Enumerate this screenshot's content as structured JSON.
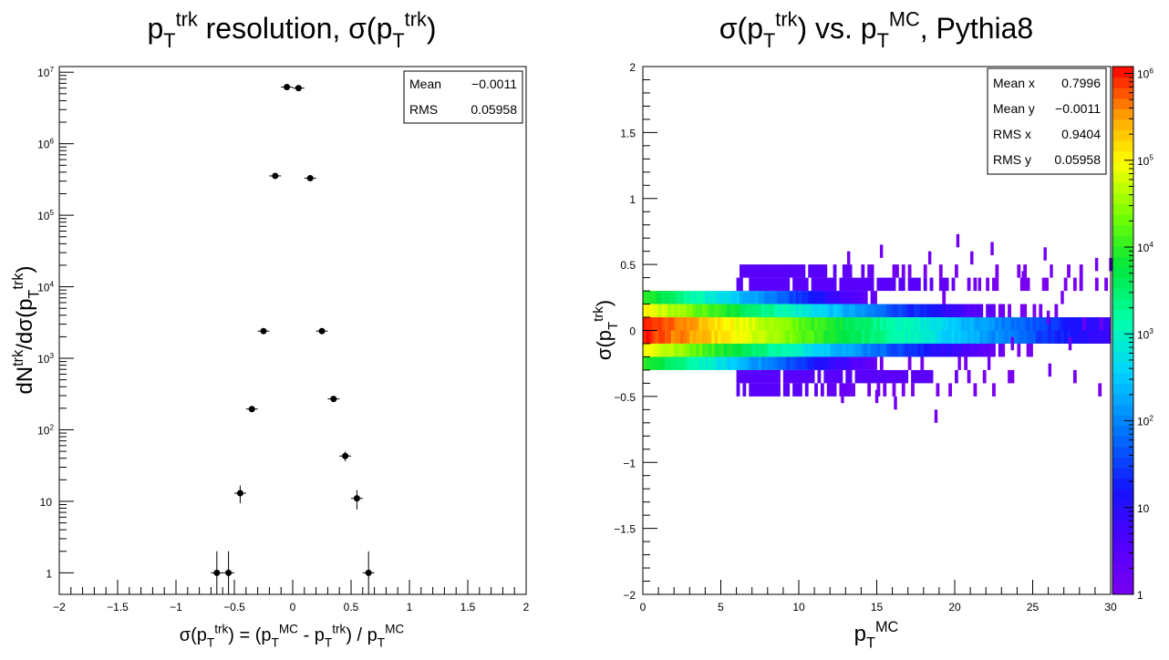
{
  "left": {
    "title": {
      "p": "p",
      "sub": "T",
      "sup": "trk",
      "rest1": " resolution, σ(",
      "p2": "p",
      "sub2": "T",
      "sup2": "trk",
      "rest2": ")"
    },
    "xlabel": "σ(p_T^trk) = (p_T^MC - p_T^trk) / p_T^MC",
    "ylabel": "dN^trk/dσ(p_T^trk)",
    "stats": {
      "mean_label": "Mean",
      "mean_value": "−0.0011",
      "rms_label": "RMS",
      "rms_value": "0.05958"
    }
  },
  "right": {
    "title": "σ(p_T^trk) vs. p_T^MC, Pythia8",
    "xlabel": "p_T^MC",
    "ylabel": "σ(p_T^trk)",
    "stats": [
      {
        "label": "Mean x",
        "value": "0.7996"
      },
      {
        "label": "Mean y",
        "value": "−0.0011"
      },
      {
        "label": "RMS x",
        "value": "0.9404"
      },
      {
        "label": "RMS y",
        "value": "0.05958"
      }
    ]
  },
  "chart_data": [
    {
      "type": "scatter",
      "x": [
        -0.65,
        -0.55,
        -0.45,
        -0.35,
        -0.25,
        -0.15,
        -0.05,
        0.05,
        0.15,
        0.25,
        0.35,
        0.45,
        0.55,
        0.65
      ],
      "y": [
        1,
        1,
        13,
        195,
        2400,
        355000,
        6200000,
        6000000,
        330000,
        2400,
        270,
        43,
        11,
        1
      ],
      "xlim": [
        -2,
        2
      ],
      "ylim": [
        0.5,
        12000000
      ],
      "y_scale": "log",
      "x_ticks": [
        "−2",
        "−1.5",
        "−1",
        "−0.5",
        "0",
        "0.5",
        "1",
        "1.5",
        "2"
      ],
      "x_tick_values": [
        -2,
        -1.5,
        -1,
        -0.5,
        0,
        0.5,
        1,
        1.5,
        2
      ],
      "y_ticks": [
        "1",
        "10",
        "10^2",
        "10^3",
        "10^4",
        "10^5",
        "10^6",
        "10^7"
      ]
    },
    {
      "type": "heatmap",
      "xlim": [
        0,
        30
      ],
      "ylim": [
        -2,
        2
      ],
      "x_ticks": [
        "0",
        "5",
        "10",
        "15",
        "20",
        "25",
        "30"
      ],
      "x_tick_values": [
        0,
        5,
        10,
        15,
        20,
        25,
        30
      ],
      "y_ticks": [
        "−2",
        "−1.5",
        "−1",
        "−0.5",
        "0",
        "0.5",
        "1",
        "1.5",
        "2"
      ],
      "y_tick_values": [
        -2,
        -1.5,
        -1,
        -0.5,
        0,
        0.5,
        1,
        1.5,
        2
      ],
      "z_scale": "log",
      "z_range": [
        1,
        1200000
      ],
      "z_ticks": [
        "1",
        "10",
        "10^2",
        "10^3",
        "10^4",
        "10^5",
        "10^6"
      ],
      "y_bins_center": [
        0.25,
        0.15,
        0.05,
        -0.05,
        -0.15,
        -0.25
      ],
      "bin_width_x": 0.2,
      "row_peak": [
        9000,
        100000,
        1000000,
        1000000,
        100000,
        9000
      ],
      "row_decay": [
        0.5,
        0.42,
        0.35,
        0.35,
        0.42,
        0.5
      ],
      "outliers": [
        {
          "x": 15.2,
          "y": 0.6
        },
        {
          "x": 18.3,
          "y": 0.55
        },
        {
          "x": 20.1,
          "y": 0.68
        },
        {
          "x": 13.1,
          "y": 0.55
        },
        {
          "x": 22.3,
          "y": 0.62
        },
        {
          "x": 25.7,
          "y": 0.58
        },
        {
          "x": 29.0,
          "y": 0.5
        },
        {
          "x": 29.9,
          "y": 0.5
        },
        {
          "x": 28.0,
          "y": 0.35
        },
        {
          "x": 26.1,
          "y": 0.45
        },
        {
          "x": 24.3,
          "y": 0.4
        },
        {
          "x": 21.0,
          "y": 0.55
        },
        {
          "x": 16.1,
          "y": -0.55
        },
        {
          "x": 18.7,
          "y": -0.65
        },
        {
          "x": 14.9,
          "y": -0.5
        },
        {
          "x": 26.0,
          "y": -0.3
        },
        {
          "x": 22.1,
          "y": -0.25
        },
        {
          "x": 20.2,
          "y": -0.25
        },
        {
          "x": 28.2,
          "y": 0.05
        },
        {
          "x": 25.9,
          "y": 0.1
        },
        {
          "x": 27.3,
          "y": -0.1
        },
        {
          "x": 29.3,
          "y": 0.05
        },
        {
          "x": 26.8,
          "y": 0.25
        },
        {
          "x": 12.7,
          "y": -0.5
        },
        {
          "x": 23.6,
          "y": -0.1
        },
        {
          "x": 21.5,
          "y": 0.35
        }
      ]
    }
  ]
}
